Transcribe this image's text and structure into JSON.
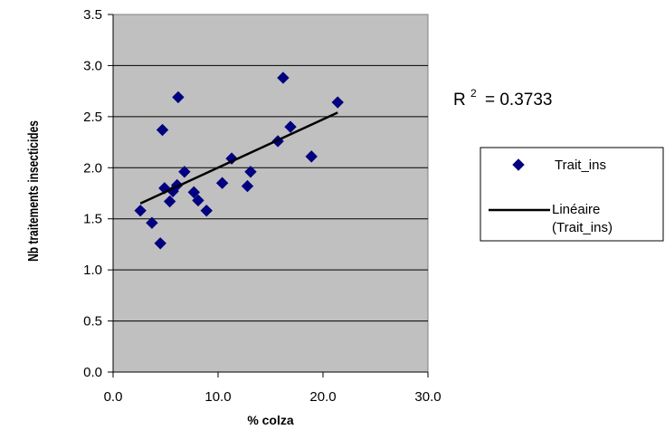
{
  "chart_data": {
    "type": "scatter",
    "xlabel": "% colza",
    "ylabel": "Nb traitements insecticides",
    "xlim": [
      0,
      30
    ],
    "ylim": [
      0,
      3.5
    ],
    "xticks": [
      "0.0",
      "10.0",
      "20.0",
      "30.0"
    ],
    "yticks": [
      "0.0",
      "0.5",
      "1.0",
      "1.5",
      "2.0",
      "2.5",
      "3.0",
      "3.5"
    ],
    "grid": "horizontal",
    "plot_background": "#c0c0c0",
    "series": [
      {
        "name": "Trait_ins",
        "color": "#000080",
        "marker": "diamond",
        "points": [
          {
            "x": 2.6,
            "y": 1.58
          },
          {
            "x": 3.7,
            "y": 1.46
          },
          {
            "x": 4.5,
            "y": 1.26
          },
          {
            "x": 4.7,
            "y": 2.37
          },
          {
            "x": 4.9,
            "y": 1.8
          },
          {
            "x": 5.4,
            "y": 1.67
          },
          {
            "x": 5.7,
            "y": 1.77
          },
          {
            "x": 6.1,
            "y": 1.83
          },
          {
            "x": 6.2,
            "y": 2.69
          },
          {
            "x": 6.8,
            "y": 1.96
          },
          {
            "x": 7.7,
            "y": 1.76
          },
          {
            "x": 8.1,
            "y": 1.68
          },
          {
            "x": 8.9,
            "y": 1.58
          },
          {
            "x": 10.4,
            "y": 1.85
          },
          {
            "x": 11.3,
            "y": 2.09
          },
          {
            "x": 12.8,
            "y": 1.82
          },
          {
            "x": 13.1,
            "y": 1.96
          },
          {
            "x": 15.7,
            "y": 2.26
          },
          {
            "x": 16.2,
            "y": 2.88
          },
          {
            "x": 16.9,
            "y": 2.4
          },
          {
            "x": 18.9,
            "y": 2.11
          },
          {
            "x": 21.4,
            "y": 2.64
          }
        ]
      }
    ],
    "trendline": {
      "name": "Linéaire (Trait_ins)",
      "color": "#000000",
      "x": [
        2.6,
        21.4
      ],
      "y": [
        1.65,
        2.54
      ]
    },
    "annotations": {
      "r2_base": "R",
      "r2_sup": "2",
      "r2_value": "= 0.3733"
    },
    "legend": {
      "placement": "right",
      "entries": [
        {
          "label_lines": [
            "Trait_ins"
          ]
        },
        {
          "label_lines": [
            "Linéaire",
            "(Trait_ins)"
          ]
        }
      ]
    }
  }
}
